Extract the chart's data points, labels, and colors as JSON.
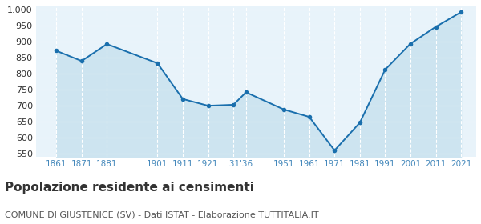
{
  "years": [
    1861,
    1871,
    1881,
    1901,
    1911,
    1921,
    1931,
    1936,
    1951,
    1961,
    1971,
    1981,
    1991,
    2001,
    2011,
    2021
  ],
  "population": [
    872,
    840,
    893,
    833,
    721,
    700,
    703,
    742,
    688,
    665,
    560,
    647,
    813,
    894,
    947,
    993
  ],
  "x_tick_positions": [
    1861,
    1871,
    1881,
    1901,
    1911,
    1921,
    1931,
    1936,
    1951,
    1961,
    1971,
    1981,
    1991,
    2001,
    2011,
    2021
  ],
  "x_tick_labels": [
    "1861",
    "1871",
    "1881",
    "1901",
    "1911",
    "1921",
    "'31",
    "'36",
    "1951",
    "1961",
    "1971",
    "1981",
    "1991",
    "2001",
    "2011",
    "2021"
  ],
  "yticks": [
    550,
    600,
    650,
    700,
    750,
    800,
    850,
    900,
    950,
    1000
  ],
  "ylim": [
    540,
    1010
  ],
  "xlim": [
    1853,
    2027
  ],
  "line_color": "#1a6fad",
  "fill_color": "#cde4f0",
  "background_color": "#e8f3fa",
  "grid_color": "#ffffff",
  "tick_color": "#4488bb",
  "title": "Popolazione residente ai censimenti",
  "subtitle": "COMUNE DI GIUSTENICE (SV) - Dati ISTAT - Elaborazione TUTTITALIA.IT",
  "title_fontsize": 11,
  "subtitle_fontsize": 8,
  "xtick_fontsize": 7.5,
  "ytick_fontsize": 8
}
